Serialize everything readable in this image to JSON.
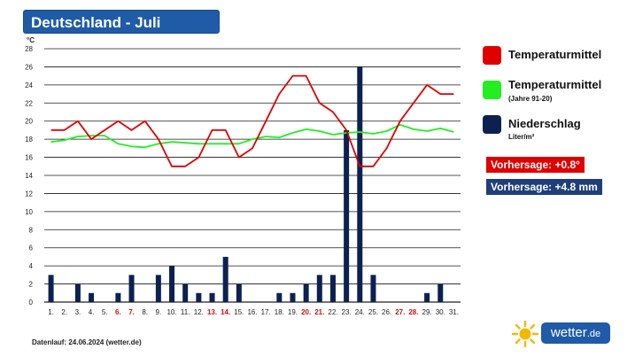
{
  "header": {
    "title": "Deutschland - Juli"
  },
  "legend": {
    "items": [
      {
        "label": "Temperaturmittel",
        "sub": "",
        "color": "#e00000"
      },
      {
        "label": "Temperaturmittel",
        "sub": "(Jahre 91-20)",
        "color": "#22ee22"
      },
      {
        "label": "Niederschlag",
        "sub": "Liter/m²",
        "color": "#0c2150"
      }
    ]
  },
  "forecast": {
    "temp": {
      "label": "Vorhersage: +0.8°",
      "color": "#e00000"
    },
    "precip": {
      "label": "Vorhersage: +4.8 mm",
      "color": "#1f3f7a"
    }
  },
  "footer": {
    "text": "Datenlauf: 24.06.2024 (wetter.de)"
  },
  "logo": {
    "name": "wetter",
    "tld": ".de"
  },
  "chart_data": {
    "type": "line",
    "ylabel": "°C",
    "ylim": [
      0,
      28
    ],
    "yticks": [
      0,
      2,
      4,
      6,
      8,
      10,
      12,
      14,
      16,
      18,
      20,
      22,
      24,
      26,
      28
    ],
    "grid": true,
    "categories": [
      "1.",
      "2.",
      "3.",
      "4.",
      "5.",
      "6.",
      "7.",
      "8.",
      "9.",
      "10.",
      "11.",
      "12.",
      "13.",
      "14.",
      "15.",
      "16.",
      "17.",
      "18.",
      "19.",
      "20.",
      "21.",
      "22.",
      "23.",
      "24.",
      "25.",
      "26.",
      "27.",
      "28.",
      "29.",
      "30.",
      "31."
    ],
    "weekend_days": [
      6,
      7,
      13,
      14,
      20,
      21,
      27,
      28
    ],
    "weekend_color": "#cc1111",
    "series": [
      {
        "name": "Temperaturmittel",
        "type": "line",
        "color": "#e00000",
        "values": [
          19,
          19,
          20,
          18,
          19,
          20,
          19,
          20,
          18,
          15,
          15,
          16,
          19,
          19,
          16,
          17,
          20,
          23,
          25,
          25,
          22,
          21,
          19,
          15,
          15,
          17,
          20,
          22,
          24,
          23,
          23
        ]
      },
      {
        "name": "Temperaturmittel (Jahre 91-20)",
        "type": "line",
        "color": "#22ee22",
        "values": [
          17.7,
          17.9,
          18.3,
          18.4,
          18.4,
          17.5,
          17.2,
          17.1,
          17.5,
          17.7,
          17.6,
          17.5,
          17.5,
          17.5,
          17.5,
          18.0,
          18.3,
          18.2,
          18.7,
          19.1,
          18.9,
          18.5,
          18.7,
          18.8,
          18.6,
          18.9,
          19.6,
          19.1,
          18.9,
          19.2,
          18.8
        ]
      },
      {
        "name": "Niederschlag",
        "type": "bar",
        "color": "#0c2150",
        "values": [
          3,
          0,
          2,
          1,
          0,
          1,
          3,
          0,
          3,
          4,
          2,
          1,
          1,
          5,
          2,
          0,
          0,
          1,
          1,
          2,
          3,
          3,
          19,
          26,
          3,
          0,
          0,
          0,
          1,
          2,
          0
        ]
      }
    ]
  }
}
